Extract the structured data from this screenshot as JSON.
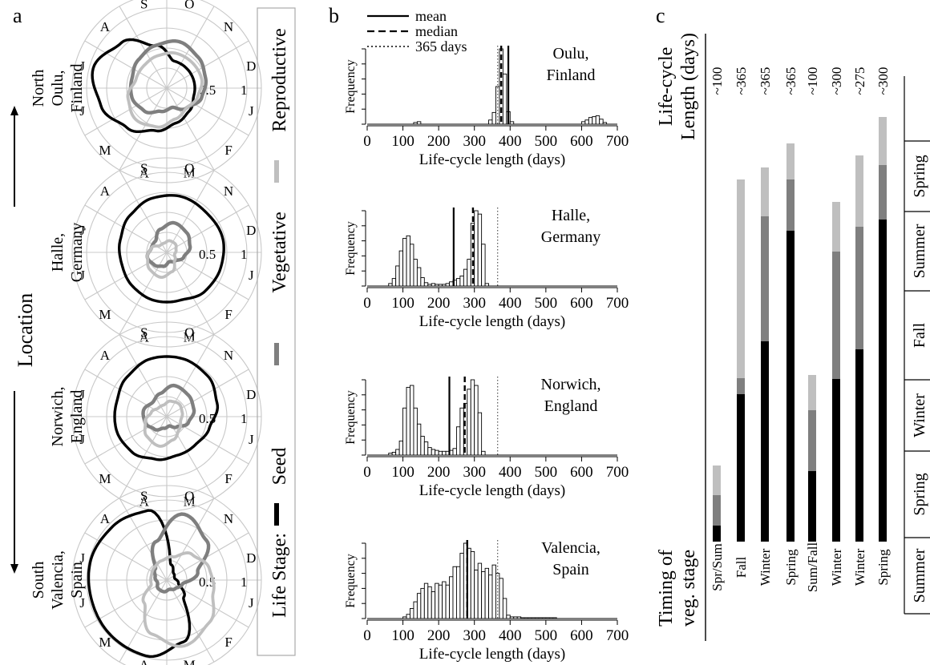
{
  "panels": {
    "a": "a",
    "b": "b",
    "c": "c"
  },
  "location_axis": {
    "north": "North",
    "label": "Location",
    "south": "South"
  },
  "legend": {
    "title": "Life Stage:",
    "items": [
      {
        "name": "Seed",
        "color": "#000000"
      },
      {
        "name": "Vegetative",
        "color": "#7f7f7f"
      },
      {
        "name": "Reproductive",
        "color": "#bfbfbf"
      }
    ]
  },
  "polar": {
    "months": [
      "O",
      "N",
      "D",
      "J",
      "F",
      "M",
      "A",
      "M",
      "J",
      "J",
      "A",
      "S"
    ],
    "radial_ticks": [
      "0.5",
      "1"
    ],
    "sites": [
      {
        "label": [
          "North",
          "Oulu,",
          "Finland"
        ],
        "seed": [
          0.35,
          0.35,
          0.35,
          0.35,
          0.4,
          0.45,
          0.55,
          0.7,
          0.85,
          0.95,
          0.8,
          0.55
        ],
        "veg": [
          0.6,
          0.55,
          0.5,
          0.45,
          0.35,
          0.25,
          0.3,
          0.4,
          0.45,
          0.45,
          0.5,
          0.55
        ],
        "rep": [
          0.45,
          0.45,
          0.45,
          0.4,
          0.35,
          0.4,
          0.5,
          0.55,
          0.5,
          0.4,
          0.4,
          0.42
        ]
      },
      {
        "label": [
          "Halle,",
          "Germany"
        ],
        "seed": [
          0.72,
          0.7,
          0.72,
          0.7,
          0.68,
          0.62,
          0.62,
          0.6,
          0.58,
          0.6,
          0.65,
          0.7
        ],
        "veg": [
          0.38,
          0.35,
          0.3,
          0.22,
          0.15,
          0.12,
          0.18,
          0.22,
          0.25,
          0.2,
          0.2,
          0.3
        ],
        "rep": [
          0.15,
          0.15,
          0.12,
          0.1,
          0.14,
          0.25,
          0.32,
          0.3,
          0.25,
          0.2,
          0.12,
          0.12
        ]
      },
      {
        "label": [
          "Norwich,",
          "England"
        ],
        "seed": [
          0.75,
          0.72,
          0.65,
          0.55,
          0.5,
          0.5,
          0.55,
          0.62,
          0.65,
          0.65,
          0.7,
          0.75
        ],
        "veg": [
          0.4,
          0.38,
          0.35,
          0.28,
          0.18,
          0.12,
          0.15,
          0.22,
          0.28,
          0.3,
          0.25,
          0.3
        ],
        "rep": [
          0.2,
          0.22,
          0.2,
          0.18,
          0.22,
          0.3,
          0.38,
          0.35,
          0.28,
          0.2,
          0.15,
          0.15
        ]
      },
      {
        "label": [
          "South",
          "Valencia,",
          "Spain"
        ],
        "seed": [
          0.2,
          0.12,
          0.1,
          0.15,
          0.3,
          0.8,
          0.98,
          0.98,
          0.97,
          0.98,
          0.95,
          0.9
        ],
        "veg": [
          0.85,
          0.7,
          0.4,
          0.2,
          0.15,
          0.12,
          0.15,
          0.15,
          0.12,
          0.15,
          0.2,
          0.5
        ],
        "rep": [
          0.3,
          0.45,
          0.55,
          0.6,
          0.75,
          0.85,
          0.7,
          0.4,
          0.2,
          0.2,
          0.22,
          0.25
        ]
      }
    ]
  },
  "hist": {
    "legend": [
      "mean",
      "median",
      "365 days"
    ],
    "xlabel": "Life-cycle length (days)",
    "ylabel": "Frequency",
    "xticks": [
      "0",
      "100",
      "200",
      "300",
      "400",
      "500",
      "600",
      "700"
    ],
    "sites": [
      {
        "name": [
          "Oulu,",
          "Finland"
        ],
        "mean": 395,
        "median": 375,
        "line365": 365,
        "bins": [
          [
            130,
            2
          ],
          [
            140,
            3
          ],
          [
            340,
            5
          ],
          [
            350,
            14
          ],
          [
            360,
            45
          ],
          [
            370,
            90
          ],
          [
            380,
            60
          ],
          [
            390,
            15
          ],
          [
            400,
            3
          ],
          [
            600,
            3
          ],
          [
            610,
            5
          ],
          [
            620,
            8
          ],
          [
            630,
            9
          ],
          [
            640,
            10
          ],
          [
            650,
            6
          ],
          [
            660,
            2
          ]
        ]
      },
      {
        "name": [
          "Halle,",
          "Germany"
        ],
        "mean": 242,
        "median": 296,
        "line365": 365,
        "bins": [
          [
            60,
            3
          ],
          [
            70,
            9
          ],
          [
            80,
            24
          ],
          [
            90,
            42
          ],
          [
            100,
            57
          ],
          [
            110,
            60
          ],
          [
            120,
            50
          ],
          [
            130,
            32
          ],
          [
            140,
            22
          ],
          [
            150,
            10
          ],
          [
            160,
            4
          ],
          [
            170,
            2
          ],
          [
            180,
            3
          ],
          [
            190,
            2
          ],
          [
            200,
            2
          ],
          [
            210,
            2
          ],
          [
            220,
            3
          ],
          [
            230,
            5
          ],
          [
            240,
            7
          ],
          [
            250,
            9
          ],
          [
            260,
            12
          ],
          [
            270,
            20
          ],
          [
            280,
            32
          ],
          [
            290,
            75
          ],
          [
            300,
            90
          ],
          [
            310,
            86
          ],
          [
            320,
            50
          ],
          [
            330,
            3
          ]
        ]
      },
      {
        "name": [
          "Norwich,",
          "England"
        ],
        "mean": 230,
        "median": 273,
        "line365": 365,
        "bins": [
          [
            60,
            2
          ],
          [
            70,
            3
          ],
          [
            80,
            6
          ],
          [
            90,
            15
          ],
          [
            100,
            50
          ],
          [
            110,
            72
          ],
          [
            120,
            74
          ],
          [
            130,
            50
          ],
          [
            140,
            33
          ],
          [
            150,
            20
          ],
          [
            160,
            14
          ],
          [
            170,
            8
          ],
          [
            180,
            6
          ],
          [
            190,
            5
          ],
          [
            200,
            4
          ],
          [
            210,
            4
          ],
          [
            220,
            4
          ],
          [
            230,
            5
          ],
          [
            240,
            7
          ],
          [
            250,
            30
          ],
          [
            260,
            50
          ],
          [
            270,
            55
          ],
          [
            280,
            70
          ],
          [
            290,
            80
          ],
          [
            300,
            74
          ],
          [
            310,
            45
          ],
          [
            320,
            4
          ]
        ]
      },
      {
        "name": [
          "Valencia,",
          "Spain"
        ],
        "mean": 280,
        "median": 280,
        "line365": 365,
        "bins": [
          [
            100,
            2
          ],
          [
            110,
            5
          ],
          [
            120,
            12
          ],
          [
            130,
            20
          ],
          [
            140,
            30
          ],
          [
            150,
            36
          ],
          [
            160,
            42
          ],
          [
            170,
            38
          ],
          [
            180,
            32
          ],
          [
            190,
            42
          ],
          [
            200,
            40
          ],
          [
            210,
            44
          ],
          [
            220,
            40
          ],
          [
            230,
            50
          ],
          [
            240,
            62
          ],
          [
            250,
            62
          ],
          [
            260,
            78
          ],
          [
            270,
            90
          ],
          [
            280,
            84
          ],
          [
            290,
            80
          ],
          [
            300,
            58
          ],
          [
            310,
            66
          ],
          [
            320,
            56
          ],
          [
            330,
            60
          ],
          [
            340,
            52
          ],
          [
            350,
            64
          ],
          [
            360,
            54
          ],
          [
            370,
            48
          ],
          [
            380,
            24
          ],
          [
            390,
            4
          ],
          [
            400,
            2
          ],
          [
            410,
            2
          ],
          [
            420,
            2
          ],
          [
            430,
            1
          ],
          [
            440,
            1
          ],
          [
            450,
            1
          ],
          [
            460,
            1
          ],
          [
            470,
            1
          ],
          [
            480,
            1
          ],
          [
            490,
            1
          ],
          [
            500,
            1
          ],
          [
            510,
            1
          ],
          [
            520,
            1
          ]
        ]
      }
    ]
  },
  "chart_data": {
    "type": "bar",
    "title": "Life-cycle Length (days)",
    "xlabel": "Timing of veg. stage",
    "categories": [
      "Spr/Sum",
      "Fall",
      "Winter",
      "Spring",
      "Sum/Fall",
      "Winter",
      "Winter",
      "Spring"
    ],
    "length_labels": [
      "~100",
      "~365",
      "~365",
      "~365",
      "~100",
      "~300",
      "~275",
      "~300"
    ],
    "season_axis": [
      "Summer",
      "Spring",
      "Winter",
      "Fall",
      "Summer",
      "Spring"
    ],
    "season_boundaries": [
      0,
      95,
      203,
      292,
      403,
      502,
      590
    ],
    "bars": [
      {
        "seed": [
          0,
          20
        ],
        "veg": [
          20,
          58
        ],
        "rep": [
          58,
          95
        ]
      },
      {
        "seed": [
          0,
          184
        ],
        "veg": [
          184,
          204
        ],
        "rep": [
          204,
          452
        ]
      },
      {
        "seed": [
          0,
          250
        ],
        "veg": [
          250,
          406
        ],
        "rep": [
          406,
          467
        ]
      },
      {
        "seed": [
          0,
          388
        ],
        "veg": [
          388,
          452
        ],
        "rep": [
          452,
          497
        ]
      },
      {
        "seed": [
          0,
          88
        ],
        "veg": [
          88,
          164
        ],
        "rep": [
          164,
          208
        ]
      },
      {
        "seed": [
          0,
          203
        ],
        "veg": [
          203,
          362
        ],
        "rep": [
          362,
          424
        ]
      },
      {
        "seed": [
          0,
          240
        ],
        "veg": [
          240,
          393
        ],
        "rep": [
          393,
          482
        ]
      },
      {
        "seed": [
          0,
          402
        ],
        "veg": [
          402,
          470
        ],
        "rep": [
          470,
          530
        ]
      }
    ]
  }
}
